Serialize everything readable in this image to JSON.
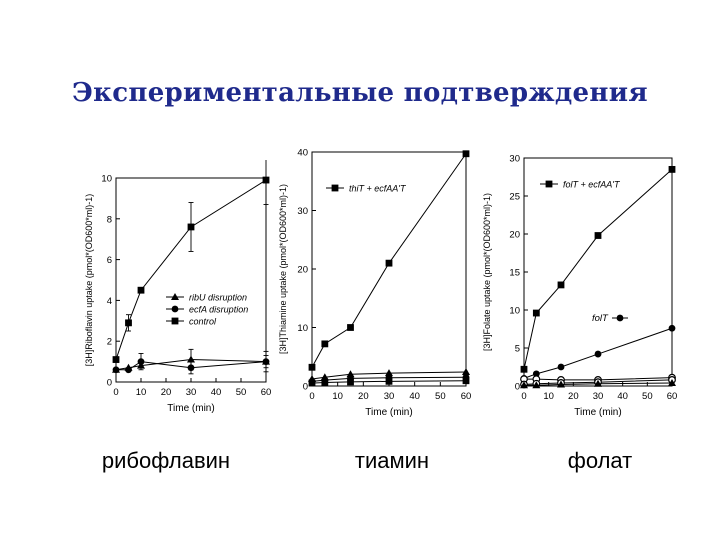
{
  "slide": {
    "title": "Экспериментальные подтверждения",
    "captions": [
      "рибофлавин",
      "тиамин",
      "фолат"
    ]
  },
  "chart_data": [
    {
      "type": "line",
      "ylabel": "[3H]Riboflavin uptake (pmol*(OD600*ml)-1)",
      "xlabel": "Time (min)",
      "xlim": [
        0,
        60
      ],
      "ylim": [
        0,
        10
      ],
      "xticks": [
        0,
        10,
        20,
        30,
        40,
        50,
        60
      ],
      "yticks": [
        0,
        2,
        4,
        6,
        8,
        10
      ],
      "legend_position": "middle-right",
      "series": [
        {
          "name": "ribU disruption",
          "marker": "triangle",
          "x": [
            0,
            5,
            10,
            30,
            60
          ],
          "y": [
            0.6,
            0.7,
            0.8,
            1.1,
            1.0
          ],
          "err": [
            0,
            0,
            0,
            0.5,
            0.3
          ]
        },
        {
          "name": "ecfA disruption",
          "marker": "circle",
          "x": [
            0,
            5,
            10,
            30,
            60
          ],
          "y": [
            0.6,
            0.6,
            1.0,
            0.7,
            1.0
          ],
          "err": [
            0,
            0,
            0.4,
            0.3,
            0.5
          ]
        },
        {
          "name": "control",
          "marker": "square",
          "x": [
            0,
            5,
            10,
            30,
            60
          ],
          "y": [
            1.1,
            2.9,
            4.5,
            7.6,
            9.9
          ],
          "err": [
            0,
            0.4,
            0,
            1.2,
            1.2
          ]
        }
      ]
    },
    {
      "type": "line",
      "ylabel": "[3H]Thiamine uptake (pmol*(OD600*ml)-1)",
      "xlabel": "Time (min)",
      "xlim": [
        0,
        60
      ],
      "ylim": [
        0,
        40
      ],
      "xticks": [
        0,
        10,
        20,
        30,
        40,
        50,
        60
      ],
      "yticks": [
        0,
        10,
        20,
        30,
        40
      ],
      "legend_position": "top-left",
      "series": [
        {
          "name": "thiT + ecfAA'T",
          "marker": "square",
          "x": [
            0,
            5,
            15,
            30,
            60
          ],
          "y": [
            3.2,
            7.2,
            10.0,
            21.0,
            39.7
          ]
        },
        {
          "name": "",
          "marker": "triangle",
          "x": [
            0,
            5,
            15,
            30,
            60
          ],
          "y": [
            1.2,
            1.5,
            2.0,
            2.2,
            2.4
          ]
        },
        {
          "name": "",
          "marker": "circle",
          "x": [
            0,
            5,
            15,
            30,
            60
          ],
          "y": [
            0.8,
            1.0,
            1.3,
            1.4,
            1.5
          ]
        },
        {
          "name": "",
          "marker": "square",
          "x": [
            0,
            5,
            15,
            30,
            60
          ],
          "y": [
            0.5,
            0.6,
            0.7,
            0.8,
            0.9
          ]
        }
      ]
    },
    {
      "type": "line",
      "ylabel": "[3H]Folate uptake (pmol*(OD600*ml)-1)",
      "xlabel": "Time (min)",
      "xlim": [
        0,
        60
      ],
      "ylim": [
        0,
        30
      ],
      "xticks": [
        0,
        10,
        20,
        30,
        40,
        50,
        60
      ],
      "yticks": [
        0,
        5,
        10,
        15,
        20,
        25,
        30
      ],
      "legend_position": "top-left",
      "annotations": [
        "folT"
      ],
      "series": [
        {
          "name": "folT + ecfAA'T",
          "marker": "square",
          "x": [
            0,
            5,
            15,
            30,
            60
          ],
          "y": [
            2.2,
            9.6,
            13.3,
            19.8,
            28.5
          ]
        },
        {
          "name": "folT",
          "marker": "circle",
          "x": [
            0,
            5,
            15,
            30,
            60
          ],
          "y": [
            1.0,
            1.6,
            2.5,
            4.2,
            7.6
          ]
        },
        {
          "name": "",
          "marker": "open-circle",
          "x": [
            0,
            5,
            15,
            30,
            60
          ],
          "y": [
            0.9,
            0.9,
            0.8,
            0.8,
            1.1
          ]
        },
        {
          "name": "",
          "marker": "open-circle",
          "x": [
            0,
            5,
            15,
            30,
            60
          ],
          "y": [
            0.2,
            0.3,
            0.4,
            0.5,
            0.8
          ]
        },
        {
          "name": "",
          "marker": "triangle",
          "x": [
            0,
            5,
            15,
            30,
            60
          ],
          "y": [
            0.1,
            0.1,
            0.2,
            0.3,
            0.4
          ]
        }
      ]
    }
  ]
}
